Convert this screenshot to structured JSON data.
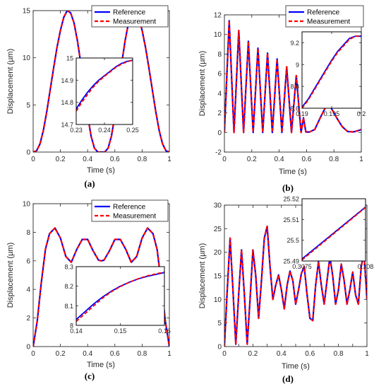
{
  "colors": {
    "reference": "#0000ff",
    "measurement": "#ff0000",
    "axis": "#262626"
  },
  "legend": {
    "reference_label": "Reference",
    "measurement_label": "Measurement"
  },
  "chart_data": [
    {
      "id": "a",
      "type": "line",
      "panel_label": "(a)",
      "xlabel": "Time (s)",
      "ylabel": "Displacement (µm)",
      "xlim": [
        0,
        1
      ],
      "ylim": [
        0,
        15
      ],
      "xticks": [
        0,
        0.2,
        0.4,
        0.6,
        0.8,
        1
      ],
      "yticks": [
        0,
        5,
        10,
        15
      ],
      "legend": true,
      "x": [
        0,
        0.025,
        0.05,
        0.075,
        0.1,
        0.125,
        0.15,
        0.175,
        0.2,
        0.225,
        0.25,
        0.275,
        0.3,
        0.325,
        0.35,
        0.375,
        0.4,
        0.425,
        0.45,
        0.475,
        0.5,
        0.525,
        0.55,
        0.575,
        0.6,
        0.625,
        0.65,
        0.675,
        0.7,
        0.725,
        0.75,
        0.775,
        0.8,
        0.825,
        0.85,
        0.875,
        0.9,
        0.925,
        0.95,
        0.975,
        1
      ],
      "series": [
        {
          "name": "Reference",
          "values": [
            0,
            0.14,
            0.86,
            2.3,
            4.3,
            6.6,
            8.9,
            11.1,
            12.9,
            14.3,
            15,
            14.76,
            13.7,
            11.8,
            9.4,
            6.6,
            3.9,
            1.7,
            0.4,
            0,
            0,
            0,
            0.4,
            1.7,
            3.9,
            6.6,
            9.4,
            11.8,
            13.7,
            14.76,
            15,
            14.3,
            12.9,
            11.1,
            8.9,
            6.6,
            4.3,
            2.3,
            0.86,
            0.14,
            0
          ]
        },
        {
          "name": "Measurement",
          "values": [
            0,
            0.14,
            0.86,
            2.3,
            4.3,
            6.6,
            8.9,
            11.1,
            12.9,
            14.3,
            15,
            14.76,
            13.7,
            11.8,
            9.4,
            6.6,
            3.9,
            1.7,
            0.4,
            0,
            0,
            0,
            0.4,
            1.7,
            3.9,
            6.6,
            9.4,
            11.8,
            13.7,
            14.76,
            15,
            14.3,
            12.9,
            11.1,
            8.9,
            6.6,
            4.3,
            2.3,
            0.86,
            0.14,
            0
          ]
        }
      ],
      "inset": {
        "xlim": [
          0.23,
          0.25
        ],
        "ylim": [
          14.7,
          15
        ],
        "xticks": [
          0.23,
          0.24,
          0.25
        ],
        "yticks": [
          14.7,
          14.8,
          14.9,
          15
        ],
        "x": [
          0.23,
          0.232,
          0.234,
          0.236,
          0.238,
          0.24,
          0.242,
          0.244,
          0.246,
          0.248,
          0.25
        ],
        "series": [
          {
            "name": "Reference",
            "values": [
              14.77,
              14.81,
              14.845,
              14.875,
              14.9,
              14.92,
              14.94,
              14.96,
              14.975,
              14.985,
              14.99
            ]
          },
          {
            "name": "Measurement",
            "values": [
              14.76,
              14.8,
              14.835,
              14.868,
              14.895,
              14.917,
              14.937,
              14.957,
              14.972,
              14.983,
              14.99
            ]
          }
        ]
      }
    },
    {
      "id": "b",
      "type": "line",
      "panel_label": "(b)",
      "xlabel": "Time (s)",
      "ylabel": "Displacement (µm)",
      "xlim": [
        0,
        1
      ],
      "ylim": [
        -2,
        12
      ],
      "xticks": [
        0,
        0.2,
        0.4,
        0.6,
        0.8,
        1
      ],
      "yticks": [
        -2,
        0,
        2,
        4,
        6,
        8,
        10,
        12
      ],
      "legend": true,
      "x": [
        0,
        0.0175,
        0.035,
        0.0525,
        0.07,
        0.0875,
        0.105,
        0.1225,
        0.14,
        0.1575,
        0.175,
        0.1925,
        0.21,
        0.2275,
        0.245,
        0.2625,
        0.28,
        0.2975,
        0.315,
        0.3325,
        0.35,
        0.3675,
        0.385,
        0.4025,
        0.42,
        0.4375,
        0.455,
        0.4725,
        0.49,
        0.5075,
        0.525,
        0.5425,
        0.56,
        0.5775,
        0.595,
        0.62,
        0.66,
        0.7,
        0.74,
        0.78,
        0.82,
        0.86,
        0.9,
        0.94,
        0.98,
        1
      ],
      "series": [
        {
          "name": "Reference",
          "values": [
            0,
            5.7,
            11.4,
            5.7,
            0,
            5.2,
            10.4,
            5.2,
            0,
            4.65,
            9.3,
            4.65,
            0,
            4.3,
            8.6,
            4.3,
            0,
            4.05,
            8.1,
            4.05,
            0,
            3.75,
            7.5,
            3.75,
            0,
            3.35,
            6.7,
            3.35,
            0,
            2.9,
            5.8,
            2.9,
            0,
            1.5,
            0.05,
            0.05,
            0.3,
            1.5,
            2.6,
            2.5,
            1.5,
            0.6,
            0.1,
            0.05,
            0.2,
            0.3
          ]
        },
        {
          "name": "Measurement",
          "values": [
            0,
            5.7,
            11.4,
            5.7,
            0,
            5.2,
            10.4,
            5.2,
            0,
            4.65,
            9.3,
            4.65,
            0,
            4.3,
            8.6,
            4.3,
            0,
            4.05,
            8.1,
            4.05,
            0,
            3.75,
            7.5,
            3.75,
            0,
            3.35,
            6.7,
            3.35,
            0,
            2.9,
            5.8,
            2.9,
            0,
            1.5,
            0.05,
            0.05,
            0.3,
            1.5,
            2.6,
            2.5,
            1.5,
            0.6,
            0.1,
            0.05,
            0.2,
            0.3
          ]
        }
      ],
      "inset": {
        "xlim": [
          0.19,
          0.2
        ],
        "ylim": [
          8.6,
          9.3
        ],
        "xticks": [
          0.19,
          0.195,
          0.2
        ],
        "yticks": [
          8.6,
          8.8,
          9,
          9.2
        ],
        "x": [
          0.19,
          0.191,
          0.192,
          0.193,
          0.194,
          0.195,
          0.196,
          0.197,
          0.198,
          0.199,
          0.2
        ],
        "series": [
          {
            "name": "Reference",
            "values": [
              8.61,
              8.68,
              8.77,
              8.86,
              8.95,
              9.04,
              9.12,
              9.18,
              9.24,
              9.26,
              9.26
            ]
          },
          {
            "name": "Measurement",
            "values": [
              8.6,
              8.67,
              8.76,
              8.85,
              8.94,
              9.03,
              9.11,
              9.17,
              9.23,
              9.26,
              9.26
            ]
          }
        ]
      }
    },
    {
      "id": "c",
      "type": "line",
      "panel_label": "(c)",
      "xlabel": "Time (s)",
      "ylabel": "Displacement (µm)",
      "xlim": [
        0,
        1
      ],
      "ylim": [
        0,
        10
      ],
      "xticks": [
        0,
        0.2,
        0.4,
        0.6,
        0.8,
        1
      ],
      "yticks": [
        0,
        2,
        4,
        6,
        8,
        10
      ],
      "legend": true,
      "x": [
        0,
        0.03,
        0.06,
        0.09,
        0.12,
        0.16,
        0.2,
        0.24,
        0.28,
        0.32,
        0.36,
        0.4,
        0.44,
        0.48,
        0.5,
        0.52,
        0.56,
        0.6,
        0.64,
        0.68,
        0.72,
        0.76,
        0.8,
        0.84,
        0.88,
        0.91,
        0.94,
        0.97,
        1
      ],
      "series": [
        {
          "name": "Reference",
          "values": [
            0,
            1.8,
            4.5,
            6.8,
            7.9,
            8.3,
            7.6,
            6.3,
            5.9,
            6.8,
            7.5,
            7.5,
            6.7,
            6.05,
            6.0,
            6.05,
            6.7,
            7.5,
            7.5,
            6.8,
            5.9,
            6.3,
            7.6,
            8.3,
            7.9,
            6.8,
            4.5,
            1.8,
            0
          ]
        },
        {
          "name": "Measurement",
          "values": [
            0,
            1.8,
            4.5,
            6.8,
            7.9,
            8.3,
            7.6,
            6.3,
            5.9,
            6.8,
            7.5,
            7.5,
            6.7,
            6.05,
            6.0,
            6.05,
            6.7,
            7.5,
            7.5,
            6.8,
            5.9,
            6.3,
            7.6,
            8.3,
            7.9,
            6.8,
            4.5,
            1.8,
            0
          ]
        }
      ],
      "inset": {
        "xlim": [
          0.14,
          0.16
        ],
        "ylim": [
          8,
          8.3
        ],
        "xticks": [
          0.14,
          0.15,
          0.16
        ],
        "yticks": [
          8,
          8.1,
          8.2,
          8.3
        ],
        "x": [
          0.14,
          0.142,
          0.144,
          0.146,
          0.148,
          0.15,
          0.152,
          0.154,
          0.156,
          0.158,
          0.16
        ],
        "series": [
          {
            "name": "Reference",
            "values": [
              8.03,
              8.07,
              8.11,
              8.145,
              8.175,
              8.2,
              8.22,
              8.237,
              8.25,
              8.26,
              8.27
            ]
          },
          {
            "name": "Measurement",
            "values": [
              8.02,
              8.06,
              8.1,
              8.14,
              8.172,
              8.198,
              8.22,
              8.238,
              8.252,
              8.263,
              8.272
            ]
          }
        ]
      }
    },
    {
      "id": "d",
      "type": "line",
      "panel_label": "(d)",
      "xlabel": "Time (s)",
      "ylabel": "Displacement (µm)",
      "xlim": [
        0,
        1
      ],
      "ylim": [
        0,
        30
      ],
      "xticks": [
        0,
        0.1,
        0.2,
        0.3,
        0.4,
        0.5,
        0.6,
        0.7,
        0.8,
        0.9,
        1
      ],
      "xticklabels": [
        "0",
        "",
        "0.2",
        "",
        "0.4",
        "",
        "0.6",
        "",
        "0.8",
        "",
        "1"
      ],
      "yticks": [
        0,
        5,
        10,
        15,
        20,
        25,
        30
      ],
      "legend": false,
      "x": [
        0,
        0.02,
        0.04,
        0.06,
        0.08,
        0.1,
        0.12,
        0.14,
        0.16,
        0.18,
        0.2,
        0.22,
        0.24,
        0.26,
        0.28,
        0.3,
        0.32,
        0.34,
        0.36,
        0.38,
        0.4,
        0.42,
        0.44,
        0.46,
        0.48,
        0.5,
        0.52,
        0.54,
        0.56,
        0.58,
        0.6,
        0.62,
        0.64,
        0.66,
        0.68,
        0.7,
        0.72,
        0.74,
        0.76,
        0.78,
        0.8,
        0.82,
        0.84,
        0.86,
        0.88,
        0.9,
        0.92,
        0.94,
        0.96,
        0.98,
        1
      ],
      "series": [
        {
          "name": "Reference",
          "values": [
            0,
            12,
            23,
            12,
            0.5,
            11,
            20.5,
            11,
            0.5,
            10,
            20.5,
            15,
            6,
            14,
            23,
            25.5,
            17,
            10,
            13,
            15.2,
            12,
            8,
            13,
            16,
            14,
            9,
            12,
            15.5,
            17,
            11,
            6,
            5.5,
            13,
            18,
            13,
            9,
            14,
            19,
            15,
            9,
            12,
            17.5,
            14,
            9,
            12,
            15.8,
            11,
            9,
            17,
            20,
            10
          ]
        },
        {
          "name": "Measurement",
          "values": [
            0,
            12,
            23,
            12,
            0.5,
            11,
            20.5,
            11,
            0.5,
            10,
            20.5,
            15,
            6,
            14,
            23,
            25.5,
            17,
            10,
            13,
            15.2,
            12,
            8,
            13,
            16,
            14,
            9,
            12,
            15.5,
            17,
            11,
            6,
            5.5,
            13,
            18,
            13,
            9,
            14,
            19,
            15,
            9,
            12,
            17.5,
            14,
            9,
            12,
            15.8,
            11,
            9,
            17,
            20,
            10
          ]
        }
      ],
      "inset": {
        "xlim": [
          0.3075,
          0.308
        ],
        "ylim": [
          25.49,
          25.52
        ],
        "xticks": [
          0.3075,
          0.308
        ],
        "xticklabels": [
          "0.3075",
          "0.308"
        ],
        "yticks": [
          25.49,
          25.5,
          25.51,
          25.52
        ],
        "x": [
          0.3075,
          0.308
        ],
        "series": [
          {
            "name": "Reference",
            "values": [
              25.491,
              25.516
            ]
          },
          {
            "name": "Measurement",
            "values": [
              25.4905,
              25.5158
            ]
          }
        ]
      }
    }
  ]
}
